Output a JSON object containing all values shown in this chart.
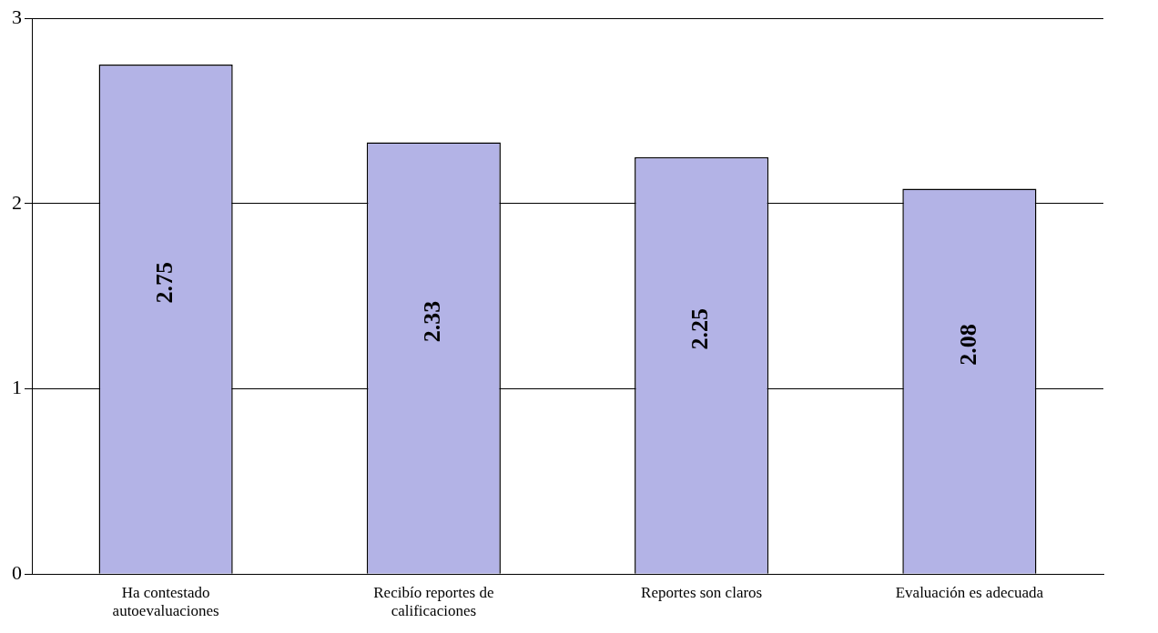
{
  "chart_data": {
    "type": "bar",
    "categories": [
      "Ha contestado autoevaluaciones",
      "Recibío reportes de calificaciones",
      "Reportes son claros",
      "Evaluación es adecuada"
    ],
    "values": [
      2.75,
      2.33,
      2.25,
      2.08
    ],
    "color": "#b3b3e6",
    "ylim": [
      0,
      3
    ],
    "yticks": [
      0,
      1,
      2,
      3
    ],
    "grid": "y",
    "data_labels": true
  }
}
